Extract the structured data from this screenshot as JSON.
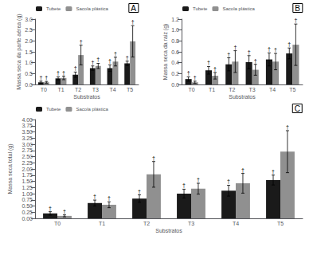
{
  "chart_data": [
    {
      "type": "bar",
      "title": "A",
      "xlabel": "Substratos",
      "ylabel": "Massa seca da parte aérea (g)",
      "categories": [
        "T0",
        "T1",
        "T2",
        "T3",
        "T4",
        "T5"
      ],
      "series": [
        {
          "name": "Tubete",
          "color": "#1a1a1a",
          "values": [
            0.1,
            0.28,
            0.45,
            0.75,
            0.75,
            0.97
          ],
          "errors": [
            0.05,
            0.07,
            0.12,
            0.1,
            0.15,
            0.1
          ],
          "annotations": [
            "†",
            "†",
            "†",
            "†",
            "†",
            "†"
          ]
        },
        {
          "name": "Sacola plástica",
          "color": "#909090",
          "values": [
            0.1,
            0.3,
            1.35,
            0.85,
            1.05,
            1.98
          ],
          "errors": [
            0.04,
            0.08,
            0.45,
            0.12,
            0.2,
            0.72
          ],
          "annotations": [
            "†",
            "†",
            "†",
            "†",
            "†",
            "†"
          ]
        }
      ],
      "ylim": [
        0.0,
        3.0
      ],
      "yticks": [
        {
          "value": 0.0,
          "label": "0.0"
        },
        0.5,
        {
          "value": 1.0,
          "label": "1.0"
        },
        1.5,
        {
          "value": 2.0,
          "label": "2.0"
        },
        2.5,
        {
          "value": 3.0,
          "label": "3.0"
        }
      ],
      "legend": "upper left",
      "grid": false
    },
    {
      "type": "bar",
      "title": "B",
      "xlabel": "Substratos",
      "ylabel": "Massa seca da raiz (g)",
      "categories": [
        "T0",
        "T1",
        "T2",
        "T3",
        "T4",
        "T5"
      ],
      "series": [
        {
          "name": "Tubete",
          "color": "#1a1a1a",
          "values": [
            0.1,
            0.26,
            0.37,
            0.41,
            0.46,
            0.57
          ],
          "errors": [
            0.04,
            0.07,
            0.12,
            0.12,
            0.12,
            0.1
          ],
          "annotations": [
            "†",
            "†",
            "†",
            "†",
            "†",
            "†"
          ]
        },
        {
          "name": "Sacola plástica",
          "color": "#909090",
          "values": [
            0.04,
            0.16,
            0.42,
            0.27,
            0.42,
            0.73
          ],
          "errors": [
            0.02,
            0.06,
            0.2,
            0.1,
            0.15,
            0.38
          ],
          "annotations": [
            "†",
            "†",
            "†",
            "†",
            "†",
            "†"
          ]
        }
      ],
      "ylim": [
        0.0,
        1.2
      ],
      "yticks": [
        {
          "value": 0.0,
          "label": "0.0"
        },
        0.2,
        0.4,
        0.6,
        0.8,
        {
          "value": 1.0,
          "label": "1.0"
        },
        1.2
      ],
      "legend": "upper left",
      "grid": false
    },
    {
      "type": "bar",
      "title": "C",
      "xlabel": "Substratos",
      "ylabel": "Massa seca total (g)",
      "categories": [
        "T0",
        "T1",
        "T2",
        "T3",
        "T4",
        "T5"
      ],
      "series": [
        {
          "name": "Tubete",
          "color": "#1a1a1a",
          "values": [
            0.2,
            0.62,
            0.8,
            1.0,
            1.12,
            1.55
          ],
          "errors": [
            0.07,
            0.12,
            0.15,
            0.18,
            0.22,
            0.2
          ],
          "annotations": [
            "†",
            "†",
            "†",
            "†",
            "†",
            "†"
          ]
        },
        {
          "name": "Sacola plástica",
          "color": "#909090",
          "values": [
            0.1,
            0.55,
            1.78,
            1.2,
            1.42,
            2.7
          ],
          "errors": [
            0.04,
            0.12,
            0.52,
            0.22,
            0.4,
            0.85
          ],
          "annotations": [
            "†",
            "†",
            "†",
            "†",
            "†",
            "†"
          ]
        }
      ],
      "ylim": [
        0.0,
        4.0
      ],
      "yticks": [
        {
          "value": 0.0,
          "label": "0.00"
        },
        0.25,
        {
          "value": 0.5,
          "label": "0.50"
        },
        0.75,
        {
          "value": 1.0,
          "label": "1.00"
        },
        1.25,
        {
          "value": 1.5,
          "label": "1.50"
        },
        1.75,
        {
          "value": 2.0,
          "label": "2.00"
        },
        2.25,
        {
          "value": 2.5,
          "label": "2.50"
        },
        2.75,
        {
          "value": 3.0,
          "label": "3.00"
        },
        3.25,
        {
          "value": 3.5,
          "label": "3.50"
        },
        3.75,
        {
          "value": 4.0,
          "label": "4.00"
        }
      ],
      "legend": "upper left",
      "grid": false
    }
  ]
}
